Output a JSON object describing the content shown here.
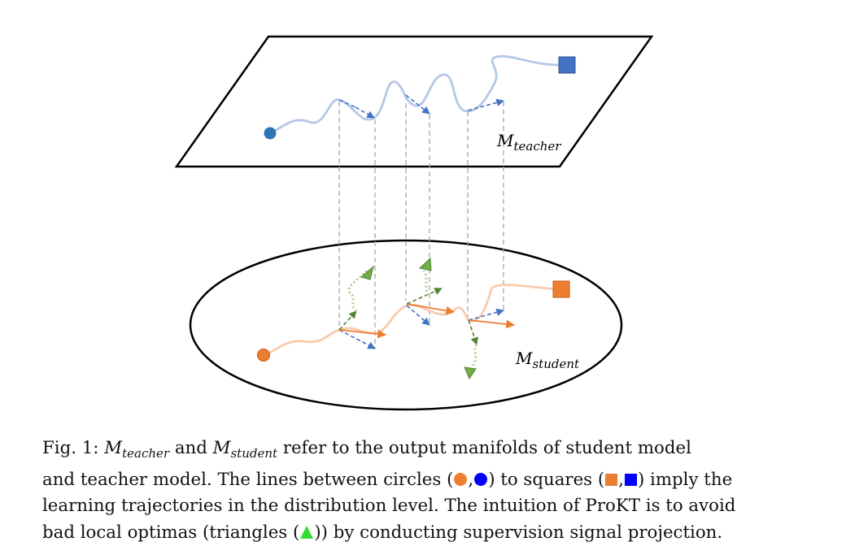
{
  "diagram": {
    "teacher_label": {
      "main": "M",
      "sub": "teacher"
    },
    "student_label": {
      "main": "M",
      "sub": "student"
    },
    "colors": {
      "teacher_path": "#b4c7e7",
      "student_path": "#f8cbad",
      "teacher_marker": "#4472c4",
      "student_marker": "#ed7d31",
      "projection_arrow": "#4472c4",
      "gradient_arrow": "#ed7d31",
      "optima_arrow": "#548235",
      "optima_dotted": "#a9d18e",
      "optima_triangle": "#70ad47",
      "guide_line": "#a6a6a6",
      "legend_circle_orange": "#ed7d31",
      "legend_circle_blue": "#0000ff",
      "legend_triangle": "#33dd33"
    }
  },
  "caption": {
    "fig_label": "Fig. 1:",
    "teacher_symbol": "M",
    "teacher_sub": "teacher",
    "and_text": "and",
    "student_symbol": "M",
    "student_sub": "student",
    "line1_rest": "refer to the output manifolds of student model",
    "line2_a": "and teacher model. The lines between circles (",
    "comma": ",",
    "line2_b": ") to squares (",
    "line2_c": ") imply the",
    "line3": "learning trajectories in the distribution level. The intuition of ProKT is to avoid",
    "line4_a": "bad local optimas (triangles (",
    "line4_b": ")) by conducting supervision signal projection."
  }
}
